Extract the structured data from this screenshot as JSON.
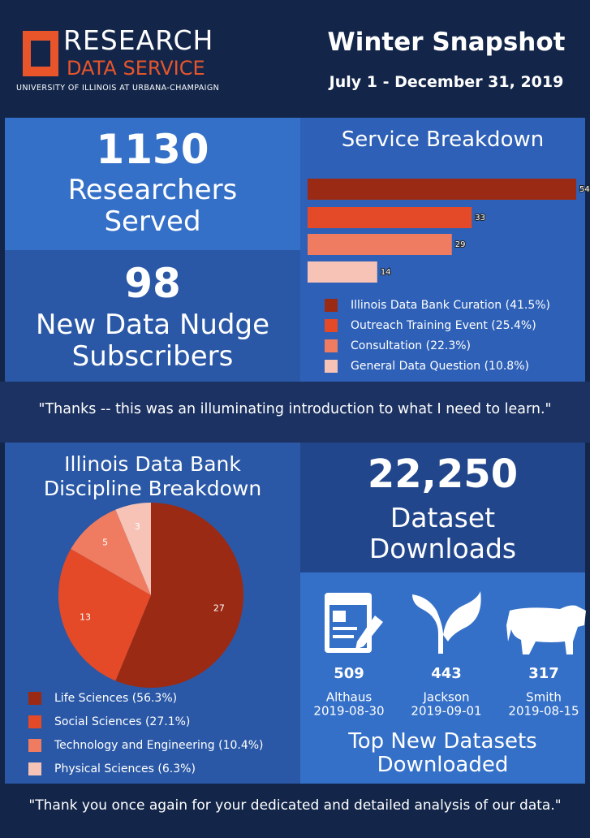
{
  "header": {
    "logo_line1": "RESEARCH",
    "logo_line2": "DATA SERVICE",
    "logo_sub": "UNIVERSITY OF ILLINOIS AT URBANA-CHAMPAIGN",
    "title": "Winter Snapshot",
    "subtitle": "July 1 - December 31, 2019"
  },
  "stats": [
    {
      "number": "1130",
      "label": [
        "Researchers",
        "Served"
      ]
    },
    {
      "number": "98",
      "label": [
        "New Data Nudge",
        "Subscribers"
      ]
    },
    {
      "number": "22,250",
      "label": [
        "Dataset",
        "Downloads"
      ]
    }
  ],
  "quotes": [
    "\"Thanks -- this was an illuminating introduction to what I need to learn.\"",
    "\"Thank you once again for your dedicated and detailed analysis of our data.\""
  ],
  "chart_data": [
    {
      "type": "bar",
      "title": "Service Breakdown",
      "categories": [
        "Illinois Data Bank Curation (41.5%)",
        "Outreach Training Event (25.4%)",
        "Consultation (22.3%)",
        "General Data Question (10.8%)"
      ],
      "values": [
        54,
        33,
        29,
        14
      ],
      "colors": [
        "#9b2a14",
        "#e44a27",
        "#ef7c61",
        "#f7c3b6"
      ]
    },
    {
      "type": "pie",
      "title": [
        "Illinois Data Bank",
        "Discipline Breakdown"
      ],
      "categories": [
        "Life Sciences (56.3%)",
        "Social Sciences (27.1%)",
        "Technology and Engineering (10.4%)",
        "Physical Sciences (6.3%)"
      ],
      "values": [
        27,
        13,
        5,
        3
      ],
      "colors": [
        "#9b2a14",
        "#e44a27",
        "#ef7c61",
        "#f7c3b6"
      ]
    }
  ],
  "top_datasets": {
    "title": [
      "Top New Datasets",
      "Downloaded"
    ],
    "items": [
      {
        "downloads": "509",
        "name": "Althaus",
        "date": "2019-08-30"
      },
      {
        "downloads": "443",
        "name": "Jackson",
        "date": "2019-09-01"
      },
      {
        "downloads": "317",
        "name": "Smith",
        "date": "2019-08-15"
      }
    ]
  }
}
